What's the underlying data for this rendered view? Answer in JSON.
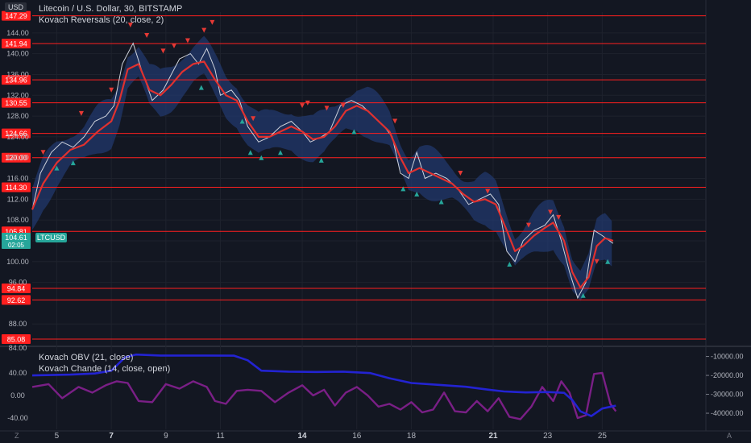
{
  "header": {
    "currency": "USD",
    "legend_main": [
      "Litecoin / U.S. Dollar, 30, BITSTAMP",
      "Kovach Reversals (20, close, 2)"
    ],
    "legend_sub": [
      "Kovach OBV (21, close)",
      "Kovach Chande (14, close, open)"
    ]
  },
  "corners": {
    "left": "Z",
    "right": "A"
  },
  "colors": {
    "background": "#131722",
    "grid": "#1e222d",
    "hline": "#ff1f1f",
    "price": "#cfd3dc",
    "ma": "#e0312f",
    "band": "#22386c",
    "obv": "#2323d2",
    "chande": "#7a1f86",
    "up_marker": "#26a69a",
    "down_marker": "#e53935",
    "ticker_badge": "#26a69a"
  },
  "chart_data": [
    {
      "type": "line",
      "title": "Litecoin / U.S. Dollar, 30, BITSTAMP",
      "ticker": "LTCUSD",
      "last_price": "104.61",
      "countdown": "02:05",
      "ylim": [
        84,
        148
      ],
      "y_ticks": [
        "88.00",
        "96.00",
        "100.00",
        "104.00",
        "108.00",
        "112.00",
        "116.00",
        "120.00",
        "124.00",
        "128.00",
        "132.00",
        "136.00",
        "140.00",
        "144.00"
      ],
      "x_ticks": [
        {
          "label": "5",
          "x": 5,
          "bold": false
        },
        {
          "label": "7",
          "x": 7,
          "bold": true
        },
        {
          "label": "9",
          "x": 9,
          "bold": false
        },
        {
          "label": "11",
          "x": 11,
          "bold": false
        },
        {
          "label": "14",
          "x": 14,
          "bold": true
        },
        {
          "label": "16",
          "x": 16,
          "bold": false
        },
        {
          "label": "18",
          "x": 18,
          "bold": false
        },
        {
          "label": "21",
          "x": 21,
          "bold": true
        },
        {
          "label": "23",
          "x": 23,
          "bold": false
        },
        {
          "label": "25",
          "x": 25,
          "bold": false
        }
      ],
      "xlim": [
        4.1,
        28.8
      ],
      "levels": [
        "147.29",
        "141.94",
        "134.96",
        "130.55",
        "124.66",
        "120.00",
        "114.30",
        "105.81",
        "94.84",
        "92.62",
        "85.08"
      ],
      "price": [
        [
          4.1,
          110
        ],
        [
          4.4,
          117
        ],
        [
          4.8,
          121
        ],
        [
          5.2,
          123
        ],
        [
          5.6,
          122
        ],
        [
          6.0,
          124
        ],
        [
          6.4,
          127
        ],
        [
          6.8,
          128
        ],
        [
          7.1,
          130
        ],
        [
          7.4,
          138
        ],
        [
          7.8,
          142
        ],
        [
          8.1,
          137
        ],
        [
          8.5,
          131
        ],
        [
          8.9,
          133
        ],
        [
          9.2,
          136
        ],
        [
          9.5,
          139
        ],
        [
          9.9,
          140
        ],
        [
          10.2,
          138
        ],
        [
          10.5,
          141
        ],
        [
          10.8,
          137
        ],
        [
          11.0,
          132
        ],
        [
          11.4,
          133
        ],
        [
          11.7,
          131
        ],
        [
          12.0,
          126
        ],
        [
          12.4,
          123
        ],
        [
          12.8,
          124
        ],
        [
          13.2,
          126
        ],
        [
          13.6,
          127
        ],
        [
          14.0,
          125
        ],
        [
          14.3,
          123
        ],
        [
          14.7,
          124
        ],
        [
          15.0,
          125
        ],
        [
          15.4,
          130
        ],
        [
          15.8,
          131
        ],
        [
          16.2,
          130
        ],
        [
          16.6,
          128
        ],
        [
          17.0,
          126
        ],
        [
          17.3,
          124
        ],
        [
          17.6,
          117
        ],
        [
          17.9,
          116
        ],
        [
          18.2,
          121
        ],
        [
          18.5,
          116
        ],
        [
          18.9,
          117
        ],
        [
          19.3,
          116
        ],
        [
          19.7,
          114
        ],
        [
          20.1,
          111
        ],
        [
          20.5,
          112
        ],
        [
          20.9,
          113
        ],
        [
          21.2,
          111
        ],
        [
          21.5,
          102
        ],
        [
          21.8,
          100
        ],
        [
          22.1,
          104
        ],
        [
          22.5,
          106
        ],
        [
          22.9,
          107
        ],
        [
          23.2,
          109
        ],
        [
          23.5,
          104
        ],
        [
          23.8,
          98
        ],
        [
          24.1,
          93
        ],
        [
          24.4,
          96
        ],
        [
          24.7,
          106
        ],
        [
          25.0,
          105
        ],
        [
          25.4,
          103.5
        ]
      ],
      "ma": [
        [
          4.1,
          110
        ],
        [
          4.5,
          115
        ],
        [
          5.0,
          119
        ],
        [
          5.5,
          121.5
        ],
        [
          6.0,
          122.5
        ],
        [
          6.5,
          125
        ],
        [
          7.0,
          127
        ],
        [
          7.3,
          131
        ],
        [
          7.6,
          137
        ],
        [
          8.0,
          138
        ],
        [
          8.4,
          133
        ],
        [
          8.8,
          132
        ],
        [
          9.2,
          134
        ],
        [
          9.6,
          136.5
        ],
        [
          10.0,
          138
        ],
        [
          10.4,
          138.5
        ],
        [
          10.8,
          135
        ],
        [
          11.2,
          132
        ],
        [
          11.6,
          131
        ],
        [
          12.0,
          127
        ],
        [
          12.4,
          124
        ],
        [
          12.8,
          124
        ],
        [
          13.2,
          125
        ],
        [
          13.6,
          126
        ],
        [
          14.0,
          125
        ],
        [
          14.4,
          123.5
        ],
        [
          14.8,
          124
        ],
        [
          15.2,
          126
        ],
        [
          15.6,
          129
        ],
        [
          16.0,
          130
        ],
        [
          16.4,
          129
        ],
        [
          16.8,
          127
        ],
        [
          17.2,
          125
        ],
        [
          17.6,
          120
        ],
        [
          17.9,
          117
        ],
        [
          18.3,
          118
        ],
        [
          18.7,
          117
        ],
        [
          19.1,
          116
        ],
        [
          19.5,
          115
        ],
        [
          19.9,
          113
        ],
        [
          20.3,
          111.5
        ],
        [
          20.7,
          112
        ],
        [
          21.1,
          111
        ],
        [
          21.5,
          106
        ],
        [
          21.8,
          102
        ],
        [
          22.1,
          103
        ],
        [
          22.5,
          105
        ],
        [
          22.9,
          106.5
        ],
        [
          23.2,
          107.5
        ],
        [
          23.6,
          104
        ],
        [
          23.9,
          98
        ],
        [
          24.2,
          95
        ],
        [
          24.5,
          97
        ],
        [
          24.8,
          103
        ],
        [
          25.1,
          104.5
        ],
        [
          25.4,
          104
        ]
      ],
      "band_width": 3.8,
      "markers_down": [
        [
          4.5,
          121
        ],
        [
          5.9,
          128.5
        ],
        [
          7.0,
          133
        ],
        [
          7.7,
          145.5
        ],
        [
          8.3,
          143.5
        ],
        [
          8.9,
          140.5
        ],
        [
          9.3,
          141.5
        ],
        [
          9.8,
          142.5
        ],
        [
          10.4,
          144.5
        ],
        [
          10.7,
          146
        ],
        [
          12.2,
          127.5
        ],
        [
          14.0,
          130
        ],
        [
          14.2,
          130.5
        ],
        [
          14.9,
          129.5
        ],
        [
          15.5,
          130
        ],
        [
          17.4,
          127
        ],
        [
          19.8,
          117
        ],
        [
          20.8,
          113.5
        ],
        [
          22.3,
          107
        ],
        [
          23.1,
          109.5
        ],
        [
          23.4,
          108.5
        ],
        [
          24.8,
          100
        ]
      ],
      "markers_up": [
        [
          5.0,
          118
        ],
        [
          5.6,
          119
        ],
        [
          10.3,
          133.5
        ],
        [
          11.8,
          127
        ],
        [
          12.1,
          121
        ],
        [
          12.5,
          120
        ],
        [
          13.2,
          121
        ],
        [
          14.7,
          119.5
        ],
        [
          15.9,
          125
        ],
        [
          17.7,
          114
        ],
        [
          18.2,
          113
        ],
        [
          19.1,
          111.5
        ],
        [
          21.6,
          99.5
        ],
        [
          24.3,
          93.5
        ],
        [
          25.2,
          100
        ]
      ]
    },
    {
      "type": "line",
      "title": "Kovach OBV (21, close) / Kovach Chande (14, close, open)",
      "left_ylim": [
        -60,
        84
      ],
      "left_ticks": [
        "84.00",
        "40.00",
        "0.00",
        "-40.00"
      ],
      "right_ylim": [
        -48500,
        -5500
      ],
      "right_ticks": [
        "-10000.00",
        "-20000.00",
        "-30000.00",
        "-40000.00"
      ],
      "obv": [
        [
          4.1,
          -20000
        ],
        [
          5.5,
          -19600
        ],
        [
          6.4,
          -19000
        ],
        [
          7.0,
          -17500
        ],
        [
          7.5,
          -10500
        ],
        [
          7.9,
          -9000
        ],
        [
          8.8,
          -9500
        ],
        [
          9.5,
          -9500
        ],
        [
          10.5,
          -9500
        ],
        [
          11.5,
          -9600
        ],
        [
          12.0,
          -12000
        ],
        [
          12.5,
          -17500
        ],
        [
          13.5,
          -18000
        ],
        [
          14.5,
          -18200
        ],
        [
          15.5,
          -18000
        ],
        [
          16.5,
          -18800
        ],
        [
          17.2,
          -21500
        ],
        [
          18.0,
          -24000
        ],
        [
          19.0,
          -25000
        ],
        [
          20.0,
          -26000
        ],
        [
          20.8,
          -27500
        ],
        [
          21.4,
          -28500
        ],
        [
          22.2,
          -29000
        ],
        [
          23.0,
          -28800
        ],
        [
          23.6,
          -29200
        ],
        [
          23.9,
          -33000
        ],
        [
          24.2,
          -39000
        ],
        [
          24.6,
          -41500
        ],
        [
          25.0,
          -37500
        ],
        [
          25.5,
          -36000
        ]
      ],
      "chande": [
        [
          4.1,
          15
        ],
        [
          4.7,
          20
        ],
        [
          5.2,
          -5
        ],
        [
          5.8,
          15
        ],
        [
          6.3,
          5
        ],
        [
          6.8,
          18
        ],
        [
          7.2,
          25
        ],
        [
          7.6,
          22
        ],
        [
          8.0,
          -10
        ],
        [
          8.5,
          -12
        ],
        [
          9.0,
          20
        ],
        [
          9.5,
          12
        ],
        [
          10.0,
          25
        ],
        [
          10.5,
          15
        ],
        [
          10.8,
          -10
        ],
        [
          11.2,
          -15
        ],
        [
          11.6,
          8
        ],
        [
          12.0,
          10
        ],
        [
          12.5,
          8
        ],
        [
          13.0,
          -12
        ],
        [
          13.5,
          5
        ],
        [
          14.0,
          18
        ],
        [
          14.4,
          0
        ],
        [
          14.8,
          10
        ],
        [
          15.2,
          -18
        ],
        [
          15.6,
          5
        ],
        [
          16.0,
          15
        ],
        [
          16.4,
          0
        ],
        [
          16.8,
          -20
        ],
        [
          17.2,
          -15
        ],
        [
          17.6,
          -25
        ],
        [
          18.0,
          -12
        ],
        [
          18.4,
          -30
        ],
        [
          18.8,
          -25
        ],
        [
          19.2,
          5
        ],
        [
          19.6,
          -28
        ],
        [
          20.0,
          -30
        ],
        [
          20.4,
          -10
        ],
        [
          20.8,
          -28
        ],
        [
          21.2,
          -5
        ],
        [
          21.6,
          -38
        ],
        [
          22.0,
          -42
        ],
        [
          22.4,
          -20
        ],
        [
          22.8,
          15
        ],
        [
          23.2,
          -10
        ],
        [
          23.5,
          25
        ],
        [
          23.8,
          5
        ],
        [
          24.1,
          -40
        ],
        [
          24.4,
          -35
        ],
        [
          24.7,
          38
        ],
        [
          25.0,
          40
        ],
        [
          25.3,
          -15
        ],
        [
          25.5,
          -28
        ]
      ]
    }
  ]
}
